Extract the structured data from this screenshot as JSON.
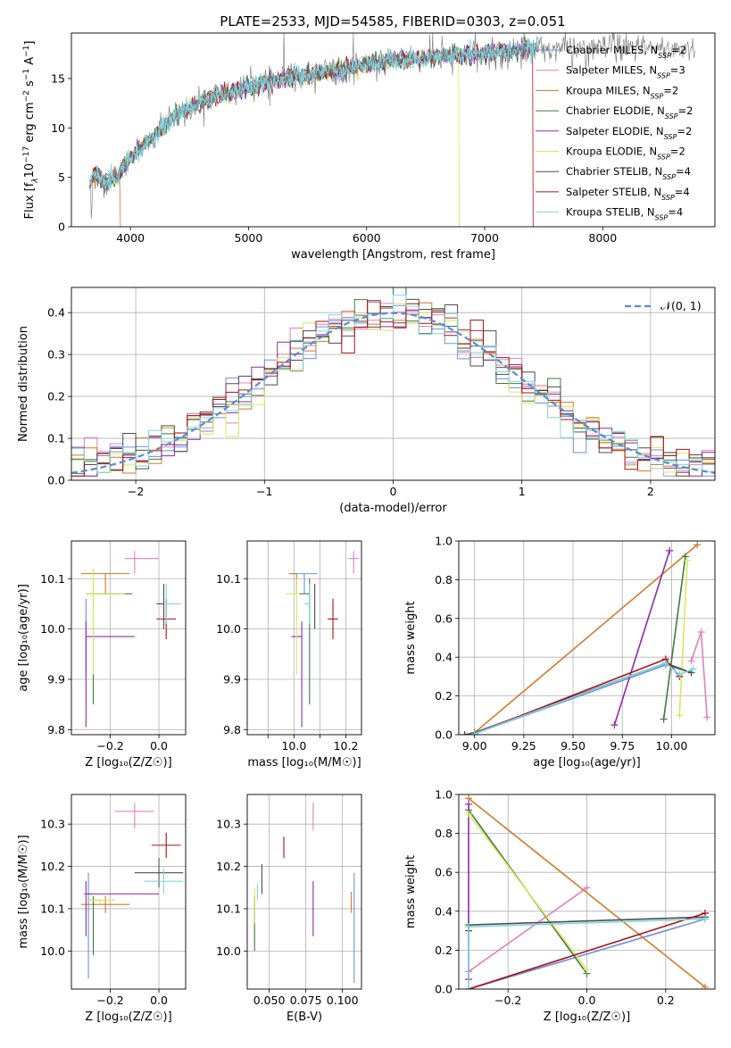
{
  "colors": {
    "Chabrier MILES": "#6b8fe0",
    "Salpeter MILES": "#e07fc0",
    "Kroupa MILES": "#d17a2a",
    "Chabrier ELODIE": "#3f7a3f",
    "Salpeter ELODIE": "#8c2aa8",
    "Kroupa ELODIE": "#d8e85a",
    "Chabrier STELIB": "#4d4d4d",
    "Salpeter STELIB": "#aa1010",
    "Kroupa STELIB": "#7fd6de",
    "normal": "#5b8ad6"
  },
  "chart_data": [
    {
      "id": "spectrum",
      "type": "line",
      "title": "PLATE=2533, MJD=54585, FIBERID=0303, z=0.051",
      "xlabel": "wavelength [Angstrom, rest frame]",
      "ylabel_parts": [
        "Flux [f",
        "λ",
        "10",
        "−17",
        " erg cm",
        "−2",
        " s",
        "−1",
        " A",
        "−1",
        "]"
      ],
      "xlim": [
        3500,
        8950
      ],
      "ylim": [
        0,
        19.6
      ],
      "xticks": [
        4000,
        5000,
        6000,
        7000,
        8000
      ],
      "yticks": [
        0,
        5,
        10,
        15
      ],
      "legend": [
        {
          "label": "Chabrier MILES, N",
          "n": "2"
        },
        {
          "label": "Salpeter MILES, N",
          "n": "3"
        },
        {
          "label": "Kroupa MILES, N",
          "n": "2"
        },
        {
          "label": "Chabrier ELODIE, N",
          "n": "2"
        },
        {
          "label": "Salpeter ELODIE, N",
          "n": "2"
        },
        {
          "label": "Kroupa ELODIE, N",
          "n": "2"
        },
        {
          "label": "Chabrier STELIB, N",
          "n": "4"
        },
        {
          "label": "Salpeter STELIB, N",
          "n": "4"
        },
        {
          "label": "Kroupa STELIB, N",
          "n": "4"
        }
      ],
      "legend_sub": "SSP",
      "continuum_x": [
        3650,
        3700,
        3800,
        3900,
        4000,
        4100,
        4200,
        4300,
        4400,
        4500,
        4700,
        4900,
        5100,
        5300,
        5500,
        5700,
        5900,
        6100,
        6300,
        6500,
        6700,
        6900,
        7100,
        7300,
        7500
      ],
      "continuum_y": [
        4.0,
        5.5,
        4.5,
        5.2,
        7.0,
        8.0,
        9.2,
        10.2,
        11.5,
        12.0,
        13.2,
        13.8,
        14.5,
        15.0,
        15.3,
        15.8,
        16.2,
        16.6,
        16.9,
        17.1,
        17.3,
        17.4,
        17.6,
        17.9,
        18.1
      ],
      "drops": [
        {
          "series": "Kroupa MILES",
          "x": 3915
        },
        {
          "series": "Kroupa ELODIE",
          "x": 6785
        },
        {
          "series": "Salpeter STELIB",
          "x": 7410
        }
      ],
      "data_end": 7450,
      "data_end_long": 8780
    },
    {
      "id": "residuals",
      "type": "histogram",
      "xlabel": "(data-model)/error",
      "ylabel": "Normed distribution",
      "xlim": [
        -2.5,
        2.5
      ],
      "ylim": [
        0,
        0.46
      ],
      "xticks": [
        -2,
        -1,
        0,
        1,
        2
      ],
      "xtick_labels": [
        "−2",
        "−1",
        "0",
        "1",
        "2"
      ],
      "yticks": [
        0.0,
        0.1,
        0.2,
        0.3,
        0.4
      ],
      "bin_width": 0.1,
      "legend_label": "𝒩(0, 1)",
      "normal_curve": {
        "mean": 0,
        "std": 1
      }
    },
    {
      "id": "age-vs-Z",
      "type": "errorbar",
      "xlabel": "Z [log₁₀(Z/Z☉)]",
      "ylabel": "age  [log₁₀(age/yr)]",
      "xlim": [
        -0.36,
        0.11
      ],
      "ylim": [
        9.79,
        10.175
      ],
      "xticks": [
        -0.2,
        0.0
      ],
      "xtick_labels": [
        "−0.2",
        "0.0"
      ],
      "yticks": [
        9.8,
        9.9,
        10.0,
        10.1
      ],
      "points": [
        {
          "series": "Chabrier MILES",
          "x": -0.3,
          "y": 10.06,
          "xerr": [
            0.0,
            0.0
          ],
          "yerr": [
            0.15,
            0.0
          ]
        },
        {
          "series": "Salpeter MILES",
          "x": -0.1,
          "y": 10.14,
          "xerr": [
            0.04,
            0.1
          ],
          "yerr": [
            0.03,
            0.015
          ]
        },
        {
          "series": "Kroupa MILES",
          "x": -0.22,
          "y": 10.11,
          "xerr": [
            0.1,
            0.1
          ],
          "yerr": [
            0.04,
            0.0
          ]
        },
        {
          "series": "Chabrier ELODIE",
          "x": -0.27,
          "y": 10.07,
          "xerr": [
            0.03,
            0.16
          ],
          "yerr": [
            0.22,
            0.03
          ]
        },
        {
          "series": "Salpeter ELODIE",
          "x": -0.3,
          "y": 9.985,
          "xerr": [
            0.0,
            0.2
          ],
          "yerr": [
            0.18,
            0.03
          ]
        },
        {
          "series": "Kroupa ELODIE",
          "x": -0.27,
          "y": 10.07,
          "xerr": [
            0.03,
            0.13
          ],
          "yerr": [
            0.16,
            0.05
          ]
        },
        {
          "series": "Chabrier STELIB",
          "x": 0.02,
          "y": 10.05,
          "xerr": [
            0.03,
            0.0
          ],
          "yerr": [
            0.05,
            0.04
          ]
        },
        {
          "series": "Salpeter STELIB",
          "x": 0.03,
          "y": 10.02,
          "xerr": [
            0.04,
            0.04
          ],
          "yerr": [
            0.04,
            0.04
          ]
        },
        {
          "series": "Kroupa STELIB",
          "x": 0.03,
          "y": 10.05,
          "xerr": [
            0.0,
            0.06
          ],
          "yerr": [
            0.04,
            0.04
          ]
        }
      ]
    },
    {
      "id": "age-vs-mass",
      "type": "errorbar",
      "xlabel": "mass [log₁₀(M/M☉)]",
      "xlim": [
        9.92,
        10.36
      ],
      "ylim": [
        9.79,
        10.175
      ],
      "xticks": [
        10.0,
        10.1,
        10.2,
        10.3
      ],
      "xtick_labels": [
        "",
        "10.0",
        "",
        "10.2"
      ],
      "yticks": [
        9.8,
        9.9,
        10.0,
        10.1
      ],
      "points": [
        {
          "series": "Chabrier MILES",
          "x": 10.14,
          "y": 10.11,
          "xerr": [
            0.05,
            0.05
          ],
          "yerr": [
            0.04,
            0.0
          ]
        },
        {
          "series": "Salpeter MILES",
          "x": 10.33,
          "y": 10.14,
          "xerr": [
            0.02,
            0.02
          ],
          "yerr": [
            0.03,
            0.015
          ]
        },
        {
          "series": "Kroupa MILES",
          "x": 10.11,
          "y": 10.11,
          "xerr": [
            0.03,
            0.0
          ],
          "yerr": [
            0.04,
            0.0
          ]
        },
        {
          "series": "Chabrier ELODIE",
          "x": 10.16,
          "y": 10.07,
          "xerr": [
            0.04,
            0.0
          ],
          "yerr": [
            0.22,
            0.03
          ]
        },
        {
          "series": "Salpeter ELODIE",
          "x": 10.13,
          "y": 9.985,
          "xerr": [
            0.04,
            0.0
          ],
          "yerr": [
            0.18,
            0.03
          ]
        },
        {
          "series": "Kroupa ELODIE",
          "x": 10.11,
          "y": 10.07,
          "xerr": [
            0.04,
            0.0
          ],
          "yerr": [
            0.16,
            0.03
          ]
        },
        {
          "series": "Chabrier STELIB",
          "x": 10.18,
          "y": 10.05,
          "xerr": [
            0.0,
            0.0
          ],
          "yerr": [
            0.05,
            0.04
          ]
        },
        {
          "series": "Salpeter STELIB",
          "x": 10.25,
          "y": 10.02,
          "xerr": [
            0.02,
            0.02
          ],
          "yerr": [
            0.04,
            0.04
          ]
        },
        {
          "series": "Kroupa STELIB",
          "x": 10.16,
          "y": 10.05,
          "xerr": [
            0.02,
            0.0
          ],
          "yerr": [
            0.04,
            0.04
          ]
        }
      ]
    },
    {
      "id": "massweight-vs-age",
      "type": "line",
      "xlabel": "age  [log₁₀(age/yr)]",
      "ylabel": "mass weight",
      "xlim": [
        8.92,
        10.22
      ],
      "ylim": [
        0,
        1
      ],
      "xticks": [
        9.0,
        9.25,
        9.5,
        9.75,
        10.0
      ],
      "xtick_labels": [
        "9.00",
        "9.25",
        "9.50",
        "9.75",
        "10.00"
      ],
      "yticks": [
        0.0,
        0.2,
        0.4,
        0.6,
        0.8,
        1.0
      ],
      "series": [
        {
          "name": "Chabrier MILES",
          "x": [
            9.0,
            9.97,
            10.1
          ],
          "y": [
            0.005,
            0.36,
            0.32
          ]
        },
        {
          "name": "Salpeter MILES",
          "x": [
            10.1,
            10.15,
            10.18
          ],
          "y": [
            0.38,
            0.53,
            0.09
          ]
        },
        {
          "name": "Kroupa MILES",
          "x": [
            9.0,
            10.13
          ],
          "y": [
            0.01,
            0.98
          ]
        },
        {
          "name": "Chabrier ELODIE",
          "x": [
            9.96,
            10.07
          ],
          "y": [
            0.08,
            0.92
          ]
        },
        {
          "name": "Salpeter ELODIE",
          "x": [
            9.71,
            9.99
          ],
          "y": [
            0.05,
            0.95
          ]
        },
        {
          "name": "Kroupa ELODIE",
          "x": [
            10.04,
            10.08
          ],
          "y": [
            0.1,
            0.9
          ]
        },
        {
          "name": "Chabrier STELIB",
          "x": [
            8.95,
            9.0,
            9.97,
            10.1
          ],
          "y": [
            0.0,
            0.01,
            0.37,
            0.32
          ]
        },
        {
          "name": "Salpeter STELIB",
          "x": [
            9.0,
            9.97,
            10.04
          ],
          "y": [
            0.005,
            0.39,
            0.3
          ]
        },
        {
          "name": "Kroupa STELIB",
          "x": [
            9.0,
            9.97,
            10.04,
            10.11
          ],
          "y": [
            0.005,
            0.37,
            0.31,
            0.34
          ]
        }
      ]
    },
    {
      "id": "mass-vs-Z",
      "type": "errorbar",
      "xlabel": "Z [log₁₀(Z/Z☉)]",
      "ylabel": "mass [log₁₀(M/M☉)]",
      "xlim": [
        -0.36,
        0.11
      ],
      "ylim": [
        9.91,
        10.37
      ],
      "xticks": [
        -0.2,
        0.0
      ],
      "xtick_labels": [
        "−0.2",
        "0.0"
      ],
      "yticks": [
        10.0,
        10.1,
        10.2,
        10.3
      ],
      "points": [
        {
          "series": "Chabrier MILES",
          "x": -0.29,
          "y": 10.135,
          "xerr": [
            0.02,
            0.02
          ],
          "yerr": [
            0.2,
            0.05
          ]
        },
        {
          "series": "Salpeter MILES",
          "x": -0.1,
          "y": 10.33,
          "xerr": [
            0.08,
            0.08
          ],
          "yerr": [
            0.04,
            0.02
          ]
        },
        {
          "series": "Kroupa MILES",
          "x": -0.22,
          "y": 10.11,
          "xerr": [
            0.1,
            0.1
          ],
          "yerr": [
            0.02,
            0.02
          ]
        },
        {
          "series": "Chabrier ELODIE",
          "x": -0.27,
          "y": 10.12,
          "xerr": [
            0.03,
            0.03
          ],
          "yerr": [
            0.13,
            0.01
          ]
        },
        {
          "series": "Salpeter ELODIE",
          "x": -0.3,
          "y": 10.135,
          "xerr": [
            0.0,
            0.3
          ],
          "yerr": [
            0.1,
            0.03
          ]
        },
        {
          "series": "Kroupa ELODIE",
          "x": -0.24,
          "y": 10.12,
          "xerr": [
            0.06,
            0.06
          ],
          "yerr": [
            0.01,
            0.0
          ]
        },
        {
          "series": "Chabrier STELIB",
          "x": 0.0,
          "y": 10.185,
          "xerr": [
            0.1,
            0.1
          ],
          "yerr": [
            0.035,
            0.035
          ]
        },
        {
          "series": "Salpeter STELIB",
          "x": 0.03,
          "y": 10.25,
          "xerr": [
            0.06,
            0.06
          ],
          "yerr": [
            0.03,
            0.03
          ]
        },
        {
          "series": "Kroupa STELIB",
          "x": 0.02,
          "y": 10.165,
          "xerr": [
            0.08,
            0.08
          ],
          "yerr": [
            0.03,
            0.03
          ]
        }
      ]
    },
    {
      "id": "mass-vs-ebv",
      "type": "errorbar",
      "xlabel": "E(B-V)",
      "xlim": [
        0.035,
        0.113
      ],
      "ylim": [
        9.91,
        10.37
      ],
      "xticks": [
        0.05,
        0.075,
        0.1
      ],
      "xtick_labels": [
        "0.050",
        "0.075",
        "0.100"
      ],
      "yticks": [
        10.0,
        10.1,
        10.2,
        10.3
      ],
      "points": [
        {
          "series": "Chabrier MILES",
          "x": 0.108,
          "y": 10.04,
          "xerr": [
            0,
            0
          ],
          "yerr": [
            0.115,
            0.145
          ]
        },
        {
          "series": "Salpeter MILES",
          "x": 0.08,
          "y": 10.315,
          "xerr": [
            0,
            0
          ],
          "yerr": [
            0.03,
            0.035
          ]
        },
        {
          "series": "Kroupa MILES",
          "x": 0.106,
          "y": 10.105,
          "xerr": [
            0,
            0
          ],
          "yerr": [
            0.015,
            0.035
          ]
        },
        {
          "series": "Chabrier ELODIE",
          "x": 0.04,
          "y": 10.05,
          "xerr": [
            0,
            0
          ],
          "yerr": [
            0.05,
            0.08
          ]
        },
        {
          "series": "Salpeter ELODIE",
          "x": 0.08,
          "y": 10.1,
          "xerr": [
            0,
            0
          ],
          "yerr": [
            0.065,
            0.065
          ]
        },
        {
          "series": "Kroupa ELODIE",
          "x": 0.04,
          "y": 10.12,
          "xerr": [
            0,
            0
          ],
          "yerr": [
            0.055,
            0.03
          ]
        },
        {
          "series": "Chabrier STELIB",
          "x": 0.045,
          "y": 10.17,
          "xerr": [
            0,
            0
          ],
          "yerr": [
            0.035,
            0.035
          ]
        },
        {
          "series": "Salpeter STELIB",
          "x": 0.06,
          "y": 10.245,
          "xerr": [
            0,
            0
          ],
          "yerr": [
            0.025,
            0.025
          ]
        },
        {
          "series": "Kroupa STELIB",
          "x": 0.042,
          "y": 10.14,
          "xerr": [
            0,
            0
          ],
          "yerr": [
            0.02,
            0.02
          ]
        }
      ]
    },
    {
      "id": "massweight-vs-Z",
      "type": "line",
      "xlabel": "Z [log₁₀(Z/Z☉)]",
      "ylabel": "mass weight",
      "xlim": [
        -0.325,
        0.325
      ],
      "ylim": [
        0,
        1
      ],
      "xticks": [
        -0.2,
        0.0,
        0.2
      ],
      "xtick_labels": [
        "−0.2",
        "0.0",
        "0.2"
      ],
      "yticks": [
        0.0,
        0.2,
        0.4,
        0.6,
        0.8,
        1.0
      ],
      "series": [
        {
          "name": "Chabrier MILES",
          "x": [
            -0.3,
            0.3
          ],
          "y": [
            0.0,
            0.36
          ]
        },
        {
          "name": "Salpeter MILES",
          "x": [
            -0.3,
            0.0
          ],
          "y": [
            0.09,
            0.52
          ]
        },
        {
          "name": "Kroupa MILES",
          "x": [
            -0.3,
            0.3
          ],
          "y": [
            0.98,
            0.01
          ]
        },
        {
          "name": "Chabrier ELODIE",
          "x": [
            -0.3,
            0.0
          ],
          "y": [
            0.92,
            0.08
          ]
        },
        {
          "name": "Salpeter ELODIE",
          "x": [
            -0.3,
            -0.3
          ],
          "y": [
            0.05,
            0.95
          ]
        },
        {
          "name": "Kroupa ELODIE",
          "x": [
            -0.3,
            0.0
          ],
          "y": [
            0.9,
            0.1
          ]
        },
        {
          "name": "Chabrier STELIB",
          "x": [
            -0.3,
            -0.3,
            0.3
          ],
          "y": [
            0.3,
            0.33,
            0.37
          ]
        },
        {
          "name": "Salpeter STELIB",
          "x": [
            -0.3,
            0.3
          ],
          "y": [
            0.0,
            0.39
          ]
        },
        {
          "name": "Kroupa STELIB",
          "x": [
            -0.3,
            -0.3,
            0.3
          ],
          "y": [
            0.0,
            0.32,
            0.36
          ]
        }
      ]
    }
  ]
}
